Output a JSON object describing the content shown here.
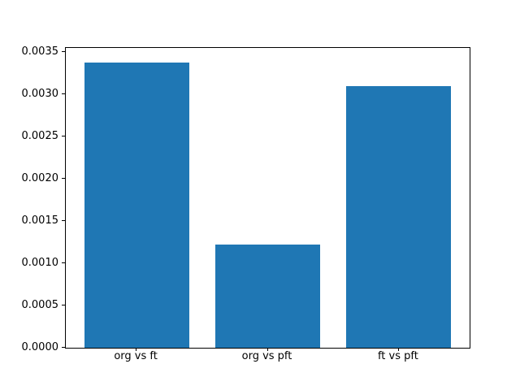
{
  "figure": {
    "background": "#ffffff",
    "spine_color": "#000000",
    "text_color": "#000000"
  },
  "chart_data": {
    "type": "bar",
    "title": "",
    "xlabel": "",
    "ylabel": "",
    "categories": [
      "org vs ft",
      "org vs pft",
      "ft vs pft"
    ],
    "values": [
      0.00338,
      0.00122,
      0.0031
    ],
    "bar_color": "#1f77b4",
    "bar_positions": [
      0,
      1,
      2
    ],
    "bar_width": 0.8,
    "xlim": [
      -0.54,
      2.54
    ],
    "ylim": [
      0,
      0.003549
    ],
    "yticks": {
      "values": [
        0.0,
        0.0005,
        0.001,
        0.0015,
        0.002,
        0.0025,
        0.003,
        0.0035
      ],
      "labels": [
        "0.0000",
        "0.0005",
        "0.0010",
        "0.0015",
        "0.0020",
        "0.0025",
        "0.0030",
        "0.0035"
      ]
    },
    "grid": false,
    "legend": null
  }
}
